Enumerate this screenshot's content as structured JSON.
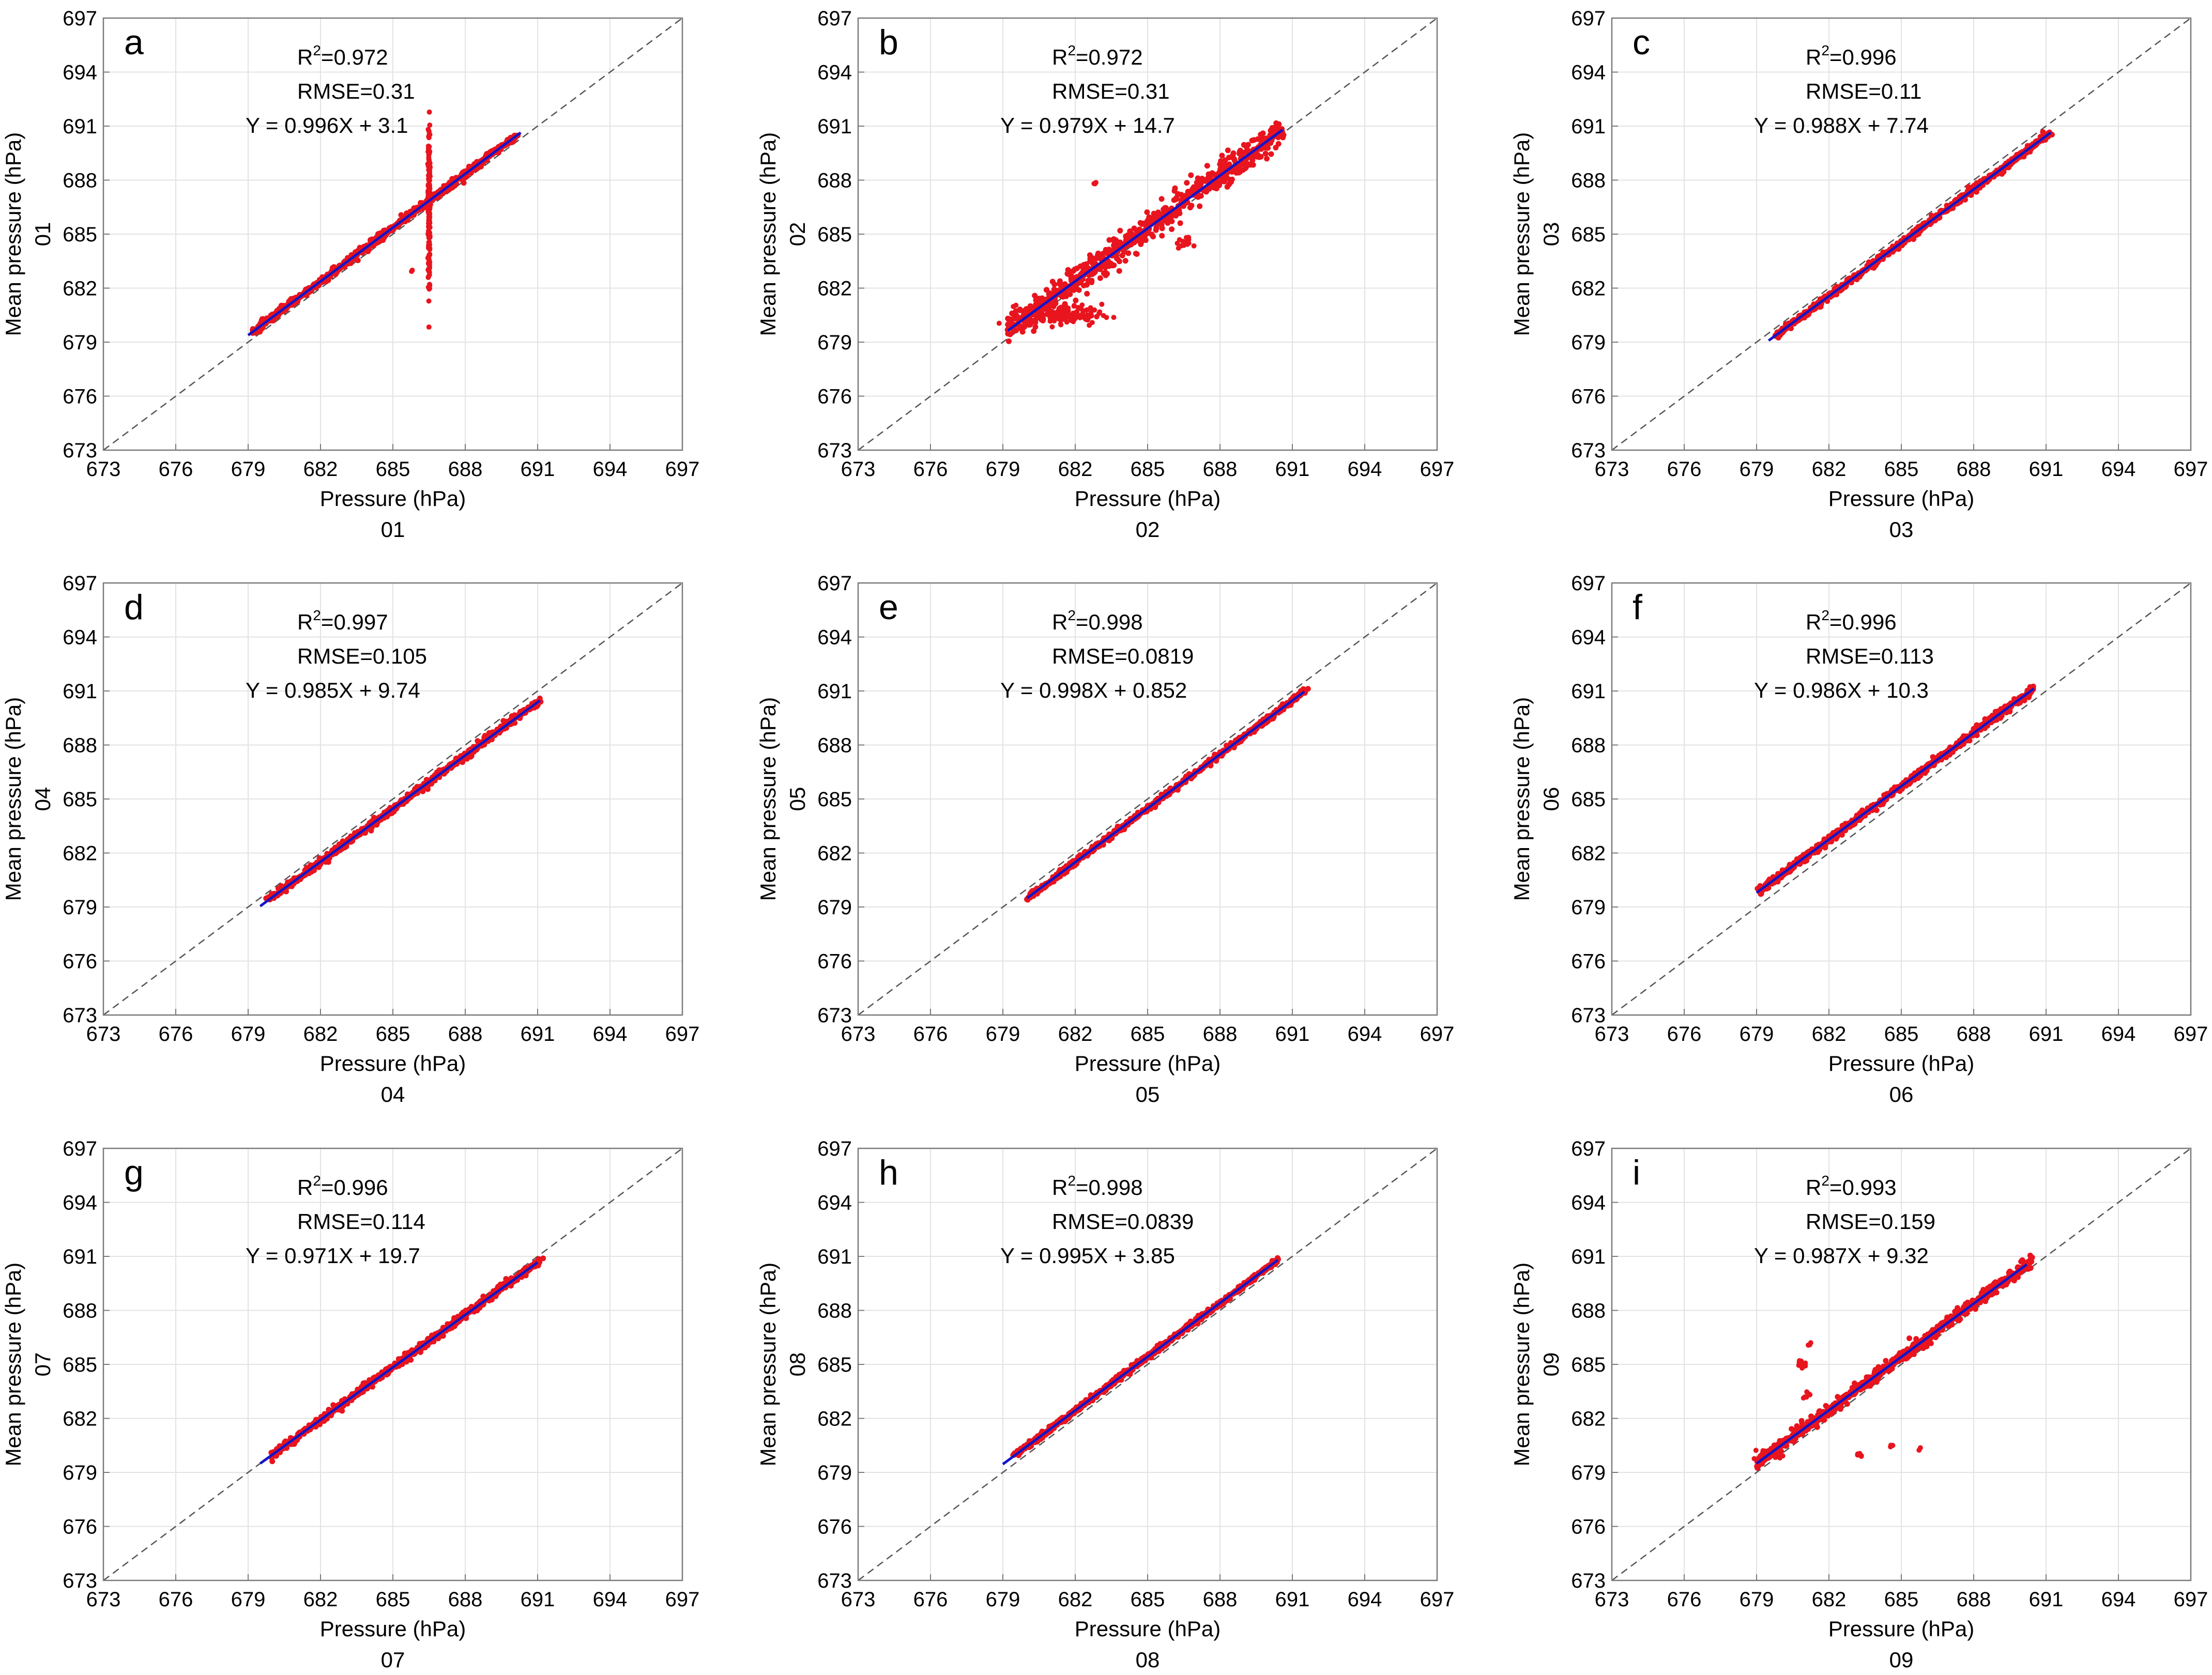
{
  "colors": {
    "scatter": "#e8141e",
    "fit": "#1414c8",
    "identity": "#555555",
    "grid": "#e3e3e3",
    "axes": "#7a7a7a",
    "background": "#ffffff"
  },
  "chart_data": [
    {
      "type": "scatter",
      "panel": "a",
      "series_label": "01",
      "xlabel": "Pressure (hPa)",
      "ylabel": "Mean pressure (hPa)",
      "xlim": [
        673,
        697
      ],
      "ylim": [
        673,
        697
      ],
      "ticks": [
        "673",
        "676",
        "679",
        "682",
        "685",
        "688",
        "691",
        "694",
        "697"
      ],
      "stats": {
        "r2": "=0.972",
        "rmse": "RMSE=0.31",
        "equation": "Y = 0.996X + 3.1"
      },
      "fit": {
        "slope": 0.996,
        "intercept": 3.1,
        "x_range": [
          679,
          690.3
        ]
      },
      "scatter": {
        "x_range": [
          679.2,
          690.1
        ],
        "spread": 0.2,
        "clusters": [
          {
            "x": 686.5,
            "y": 686.4,
            "sx": 0.02,
            "sy": 2.3,
            "n": 200
          },
          {
            "x": 679.8,
            "y": 680.2,
            "sx": 0.2,
            "sy": 0.1,
            "n": 10
          },
          {
            "x": 685.8,
            "y": 683.0,
            "sx": 0.05,
            "sy": 0.05,
            "n": 3
          }
        ]
      }
    },
    {
      "type": "scatter",
      "panel": "b",
      "series_label": "02",
      "xlabel": "Pressure (hPa)",
      "ylabel": "Mean pressure (hPa)",
      "xlim": [
        673,
        697
      ],
      "ylim": [
        673,
        697
      ],
      "ticks": [
        "673",
        "676",
        "679",
        "682",
        "685",
        "688",
        "691",
        "694",
        "697"
      ],
      "stats": {
        "r2": "=0.972",
        "rmse": "RMSE=0.31",
        "equation": "Y = 0.979X + 14.7"
      },
      "fit": {
        "slope": 0.979,
        "intercept": 14.7,
        "x_range": [
          679.2,
          690.6
        ]
      },
      "scatter": {
        "x_range": [
          679.2,
          690.6
        ],
        "spread": 0.75,
        "clusters": [
          {
            "x": 682.8,
            "y": 687.8,
            "sx": 0.05,
            "sy": 0.05,
            "n": 3
          },
          {
            "x": 686.5,
            "y": 684.5,
            "sx": 0.15,
            "sy": 0.15,
            "n": 15
          },
          {
            "x": 681.5,
            "y": 680.5,
            "sx": 0.8,
            "sy": 0.3,
            "n": 120
          }
        ]
      }
    },
    {
      "type": "scatter",
      "panel": "c",
      "series_label": "03",
      "xlabel": "Pressure (hPa)",
      "ylabel": "Mean pressure (hPa)",
      "xlim": [
        673,
        697
      ],
      "ylim": [
        673,
        697
      ],
      "ticks": [
        "673",
        "676",
        "679",
        "682",
        "685",
        "688",
        "691",
        "694",
        "697"
      ],
      "stats": {
        "r2": "=0.996",
        "rmse": "RMSE=0.11",
        "equation": "Y = 0.988X + 7.74"
      },
      "fit": {
        "slope": 0.988,
        "intercept": 7.74,
        "x_range": [
          679.5,
          691.2
        ]
      },
      "scatter": {
        "x_range": [
          679.8,
          691.2
        ],
        "spread": 0.18,
        "clusters": []
      }
    },
    {
      "type": "scatter",
      "panel": "d",
      "series_label": "04",
      "xlabel": "Pressure (hPa)",
      "ylabel": "Mean pressure (hPa)",
      "xlim": [
        673,
        697
      ],
      "ylim": [
        673,
        697
      ],
      "ticks": [
        "673",
        "676",
        "679",
        "682",
        "685",
        "688",
        "691",
        "694",
        "697"
      ],
      "stats": {
        "r2": "=0.997",
        "rmse": "RMSE=0.105",
        "equation": "Y = 0.985X + 9.74"
      },
      "fit": {
        "slope": 0.985,
        "intercept": 9.74,
        "x_range": [
          679.5,
          691.1
        ]
      },
      "scatter": {
        "x_range": [
          679.8,
          691.1
        ],
        "spread": 0.2,
        "clusters": []
      }
    },
    {
      "type": "scatter",
      "panel": "e",
      "series_label": "05",
      "xlabel": "Pressure (hPa)",
      "ylabel": "Mean pressure (hPa)",
      "xlim": [
        673,
        697
      ],
      "ylim": [
        673,
        697
      ],
      "ticks": [
        "673",
        "676",
        "679",
        "682",
        "685",
        "688",
        "691",
        "694",
        "697"
      ],
      "stats": {
        "r2": "=0.998",
        "rmse": "RMSE=0.0819",
        "equation": "Y = 0.998X + 0.852"
      },
      "fit": {
        "slope": 0.998,
        "intercept": 0.852,
        "x_range": [
          680,
          691.5
        ]
      },
      "scatter": {
        "x_range": [
          680,
          691.6
        ],
        "spread": 0.15,
        "clusters": []
      }
    },
    {
      "type": "scatter",
      "panel": "f",
      "series_label": "06",
      "xlabel": "Pressure (hPa)",
      "ylabel": "Mean pressure (hPa)",
      "xlim": [
        673,
        697
      ],
      "ylim": [
        673,
        697
      ],
      "ticks": [
        "673",
        "676",
        "679",
        "682",
        "685",
        "688",
        "691",
        "694",
        "697"
      ],
      "stats": {
        "r2": "=0.996",
        "rmse": "RMSE=0.113",
        "equation": "Y = 0.986X + 10.3"
      },
      "fit": {
        "slope": 0.986,
        "intercept": 10.3,
        "x_range": [
          679,
          690.5
        ]
      },
      "scatter": {
        "x_range": [
          679.1,
          690.5
        ],
        "spread": 0.2,
        "clusters": []
      }
    },
    {
      "type": "scatter",
      "panel": "g",
      "series_label": "07",
      "xlabel": "Pressure (hPa)",
      "ylabel": "Mean pressure (hPa)",
      "xlim": [
        673,
        697
      ],
      "ylim": [
        673,
        697
      ],
      "ticks": [
        "673",
        "676",
        "679",
        "682",
        "685",
        "688",
        "691",
        "694",
        "697"
      ],
      "stats": {
        "r2": "=0.996",
        "rmse": "RMSE=0.114",
        "equation": "Y = 0.971X + 19.7"
      },
      "fit": {
        "slope": 0.971,
        "intercept": 19.7,
        "x_range": [
          679.5,
          691
        ]
      },
      "scatter": {
        "x_range": [
          680,
          691.1
        ],
        "spread": 0.2,
        "clusters": []
      }
    },
    {
      "type": "scatter",
      "panel": "h",
      "series_label": "08",
      "xlabel": "Pressure (hPa)",
      "ylabel": "Mean pressure (hPa)",
      "xlim": [
        673,
        697
      ],
      "ylim": [
        673,
        697
      ],
      "ticks": [
        "673",
        "676",
        "679",
        "682",
        "685",
        "688",
        "691",
        "694",
        "697"
      ],
      "stats": {
        "r2": "=0.998",
        "rmse": "RMSE=0.0839",
        "equation": "Y = 0.995X + 3.85"
      },
      "fit": {
        "slope": 0.995,
        "intercept": 3.85,
        "x_range": [
          679,
          690.4
        ]
      },
      "scatter": {
        "x_range": [
          679.5,
          690.4
        ],
        "spread": 0.15,
        "clusters": []
      }
    },
    {
      "type": "scatter",
      "panel": "i",
      "series_label": "09",
      "xlabel": "Pressure (hPa)",
      "ylabel": "Mean pressure (hPa)",
      "xlim": [
        673,
        697
      ],
      "ylim": [
        673,
        697
      ],
      "ticks": [
        "673",
        "676",
        "679",
        "682",
        "685",
        "688",
        "691",
        "694",
        "697"
      ],
      "stats": {
        "r2": "=0.993",
        "rmse": "RMSE=0.159",
        "equation": "Y = 0.987X + 9.32"
      },
      "fit": {
        "slope": 0.987,
        "intercept": 9.32,
        "x_range": [
          679,
          690.2
        ]
      },
      "scatter": {
        "x_range": [
          679,
          690.4
        ],
        "spread": 0.3,
        "clusters": [
          {
            "x": 680.8,
            "y": 685.0,
            "sx": 0.1,
            "sy": 0.15,
            "n": 10
          },
          {
            "x": 681.2,
            "y": 686.1,
            "sx": 0.05,
            "sy": 0.05,
            "n": 4
          },
          {
            "x": 681.0,
            "y": 683.3,
            "sx": 0.1,
            "sy": 0.1,
            "n": 6
          },
          {
            "x": 683.3,
            "y": 680.0,
            "sx": 0.05,
            "sy": 0.1,
            "n": 5
          },
          {
            "x": 684.6,
            "y": 680.5,
            "sx": 0.05,
            "sy": 0.05,
            "n": 3
          },
          {
            "x": 685.8,
            "y": 680.3,
            "sx": 0.05,
            "sy": 0.05,
            "n": 2
          },
          {
            "x": 679.5,
            "y": 680.0,
            "sx": 0.3,
            "sy": 0.2,
            "n": 20
          }
        ]
      }
    }
  ]
}
